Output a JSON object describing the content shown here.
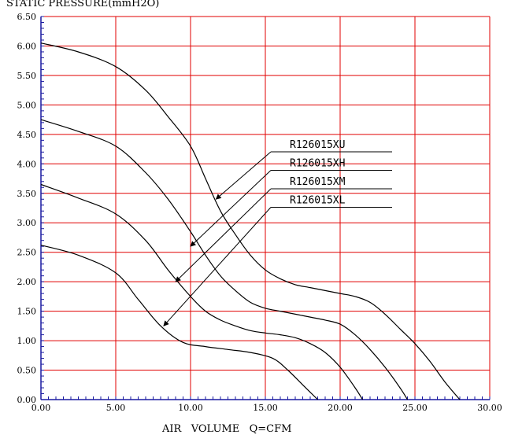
{
  "chart_data": {
    "type": "line",
    "ylabel": "STATIC PRESSURE(mmH2O)",
    "xlabel": "AIR   VOLUME   Q=CFM",
    "xlim": [
      0,
      30
    ],
    "ylim": [
      0,
      6.5
    ],
    "xticks": [
      "0.00",
      "5.00",
      "10.00",
      "15.00",
      "20.00",
      "25.00",
      "30.00"
    ],
    "yticks": [
      "0.00",
      "0.50",
      "1.00",
      "1.50",
      "2.00",
      "2.50",
      "3.00",
      "3.50",
      "4.00",
      "4.50",
      "5.00",
      "5.50",
      "6.00",
      "6.50"
    ],
    "grid": true,
    "grid_color": "#e00000",
    "line_color": "#000000",
    "series": [
      {
        "name": "R126015XU",
        "x": [
          0,
          2.5,
          5,
          7,
          8.5,
          10,
          11,
          12,
          13,
          14,
          15,
          16,
          17,
          18,
          19,
          20,
          21,
          22,
          23,
          24,
          25,
          26,
          27,
          28
        ],
        "y": [
          6.05,
          5.9,
          5.65,
          5.25,
          4.8,
          4.3,
          3.75,
          3.2,
          2.8,
          2.45,
          2.2,
          2.05,
          1.95,
          1.9,
          1.85,
          1.8,
          1.75,
          1.65,
          1.45,
          1.2,
          0.95,
          0.65,
          0.3,
          0.0
        ]
      },
      {
        "name": "R126015XH",
        "x": [
          0,
          2.5,
          5,
          7,
          8.5,
          10,
          11,
          12,
          13,
          14,
          15,
          16,
          17,
          18,
          19,
          20,
          21,
          22,
          23,
          24,
          24.5
        ],
        "y": [
          4.75,
          4.55,
          4.3,
          3.85,
          3.4,
          2.85,
          2.45,
          2.1,
          1.85,
          1.65,
          1.55,
          1.5,
          1.45,
          1.4,
          1.35,
          1.28,
          1.1,
          0.85,
          0.55,
          0.2,
          0.0
        ]
      },
      {
        "name": "R126015XM",
        "x": [
          0,
          2.5,
          5,
          7,
          8.5,
          10,
          11,
          12,
          13,
          14,
          15,
          16,
          17,
          18,
          19,
          20,
          21,
          21.5
        ],
        "y": [
          3.65,
          3.42,
          3.15,
          2.7,
          2.2,
          1.75,
          1.5,
          1.35,
          1.25,
          1.17,
          1.13,
          1.1,
          1.05,
          0.95,
          0.8,
          0.55,
          0.2,
          0.0
        ]
      },
      {
        "name": "R126015XL",
        "x": [
          0,
          2.5,
          5,
          6.5,
          8,
          9.5,
          11,
          12.5,
          14,
          15.5,
          16.5,
          17.5,
          18.5
        ],
        "y": [
          2.62,
          2.45,
          2.15,
          1.7,
          1.25,
          0.97,
          0.9,
          0.85,
          0.8,
          0.7,
          0.5,
          0.25,
          0.0
        ]
      }
    ],
    "legend": [
      {
        "label": "R126015XU",
        "arrow_to": [
          11.7,
          3.4
        ]
      },
      {
        "label": "R126015XH",
        "arrow_to": [
          10.0,
          2.6
        ]
      },
      {
        "label": "R126015XM",
        "arrow_to": [
          9.0,
          2.0
        ]
      },
      {
        "label": "R126015XL",
        "arrow_to": [
          8.2,
          1.25
        ]
      }
    ]
  }
}
